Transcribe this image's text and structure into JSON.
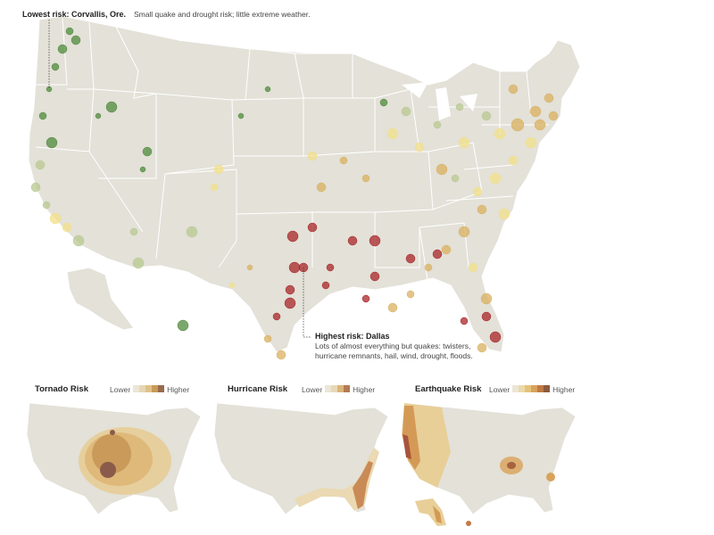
{
  "lowest": {
    "title": "Lowest risk: Corvallis, Ore.",
    "text": "Small quake and drought risk; little extreme weather."
  },
  "highest": {
    "title": "Highest risk: Dallas",
    "line1": "Lots of almost everything but quakes: twisters,",
    "line2": "hurricane remnants, hail, wind, drought, floods."
  },
  "panels": [
    {
      "title": "Tornado Risk",
      "lower": "Lower",
      "higher": "Higher",
      "scale": [
        "#ece6d6",
        "#e5d7b5",
        "#dfc28a",
        "#c99a5a",
        "#9a6a4e"
      ]
    },
    {
      "title": "Hurricane Risk",
      "lower": "Lower",
      "higher": "Higher",
      "scale": [
        "#ece6d6",
        "#e8d9b6",
        "#dcb47a",
        "#b47a52"
      ]
    },
    {
      "title": "Earthquake Risk",
      "lower": "Lower",
      "higher": "Higher",
      "scale": [
        "#ece6d6",
        "#ecd9aa",
        "#e5c27b",
        "#d9a25b",
        "#c07a46",
        "#8c5a3c"
      ]
    }
  ],
  "colors": {
    "land": "#e3e1d8",
    "border": "#ffffff",
    "low": "#4f8a3c",
    "mid_low": "#b8c890",
    "mid": "#f2e08a",
    "mid_high": "#d9b060",
    "high": "#a82428"
  }
}
